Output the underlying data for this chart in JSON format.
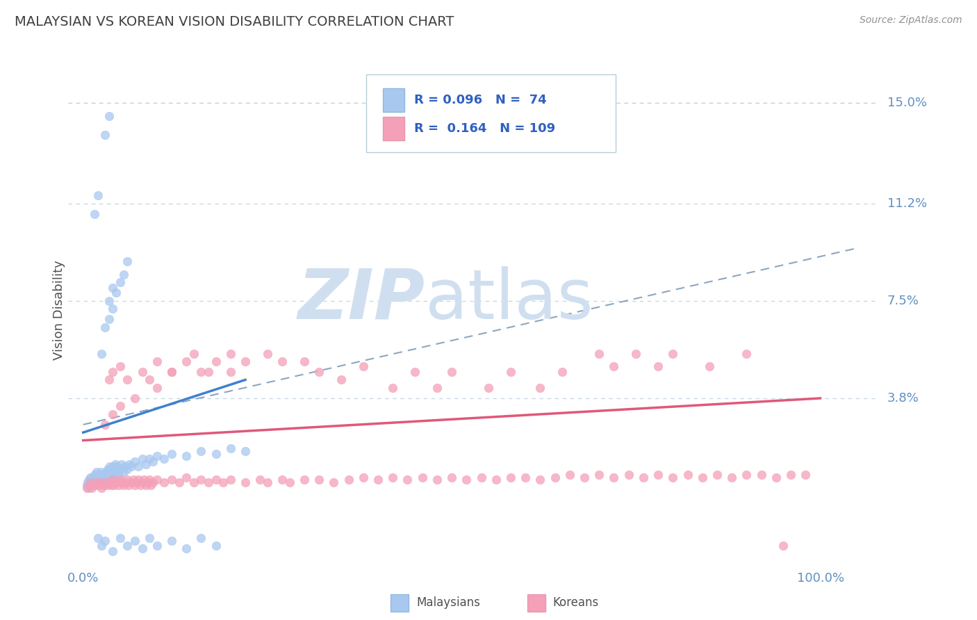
{
  "title": "MALAYSIAN VS KOREAN VISION DISABILITY CORRELATION CHART",
  "source": "Source: ZipAtlas.com",
  "ylabel": "Vision Disability",
  "ytick_labels": [
    "15.0%",
    "11.2%",
    "7.5%",
    "3.8%"
  ],
  "ytick_values": [
    0.15,
    0.112,
    0.075,
    0.038
  ],
  "ylim": [
    -0.025,
    0.168
  ],
  "xlim": [
    -0.02,
    1.08
  ],
  "malaysian_color": "#a8c8f0",
  "korean_color": "#f4a0b8",
  "malaysian_scatter": [
    [
      0.005,
      0.005
    ],
    [
      0.006,
      0.006
    ],
    [
      0.007,
      0.004
    ],
    [
      0.008,
      0.007
    ],
    [
      0.009,
      0.005
    ],
    [
      0.01,
      0.008
    ],
    [
      0.01,
      0.006
    ],
    [
      0.011,
      0.007
    ],
    [
      0.012,
      0.006
    ],
    [
      0.013,
      0.008
    ],
    [
      0.014,
      0.007
    ],
    [
      0.015,
      0.009
    ],
    [
      0.015,
      0.006
    ],
    [
      0.016,
      0.008
    ],
    [
      0.017,
      0.007
    ],
    [
      0.018,
      0.01
    ],
    [
      0.018,
      0.006
    ],
    [
      0.019,
      0.008
    ],
    [
      0.02,
      0.009
    ],
    [
      0.02,
      0.006
    ],
    [
      0.021,
      0.007
    ],
    [
      0.022,
      0.009
    ],
    [
      0.023,
      0.008
    ],
    [
      0.024,
      0.01
    ],
    [
      0.025,
      0.007
    ],
    [
      0.026,
      0.009
    ],
    [
      0.027,
      0.008
    ],
    [
      0.028,
      0.007
    ],
    [
      0.029,
      0.009
    ],
    [
      0.03,
      0.008
    ],
    [
      0.031,
      0.01
    ],
    [
      0.032,
      0.009
    ],
    [
      0.033,
      0.011
    ],
    [
      0.034,
      0.009
    ],
    [
      0.035,
      0.01
    ],
    [
      0.036,
      0.012
    ],
    [
      0.037,
      0.009
    ],
    [
      0.038,
      0.011
    ],
    [
      0.039,
      0.008
    ],
    [
      0.04,
      0.01
    ],
    [
      0.041,
      0.012
    ],
    [
      0.042,
      0.009
    ],
    [
      0.043,
      0.011
    ],
    [
      0.044,
      0.013
    ],
    [
      0.045,
      0.01
    ],
    [
      0.046,
      0.012
    ],
    [
      0.048,
      0.009
    ],
    [
      0.05,
      0.011
    ],
    [
      0.052,
      0.013
    ],
    [
      0.055,
      0.01
    ],
    [
      0.057,
      0.012
    ],
    [
      0.06,
      0.011
    ],
    [
      0.063,
      0.013
    ],
    [
      0.065,
      0.012
    ],
    [
      0.07,
      0.014
    ],
    [
      0.075,
      0.012
    ],
    [
      0.08,
      0.015
    ],
    [
      0.085,
      0.013
    ],
    [
      0.09,
      0.015
    ],
    [
      0.095,
      0.014
    ],
    [
      0.1,
      0.016
    ],
    [
      0.11,
      0.015
    ],
    [
      0.12,
      0.017
    ],
    [
      0.14,
      0.016
    ],
    [
      0.16,
      0.018
    ],
    [
      0.18,
      0.017
    ],
    [
      0.2,
      0.019
    ],
    [
      0.22,
      0.018
    ],
    [
      0.025,
      0.055
    ],
    [
      0.03,
      0.065
    ],
    [
      0.035,
      0.068
    ],
    [
      0.035,
      0.075
    ],
    [
      0.04,
      0.072
    ],
    [
      0.04,
      0.08
    ],
    [
      0.045,
      0.078
    ],
    [
      0.05,
      0.082
    ],
    [
      0.055,
      0.085
    ],
    [
      0.06,
      0.09
    ],
    [
      0.015,
      0.108
    ],
    [
      0.02,
      0.115
    ],
    [
      0.03,
      0.138
    ],
    [
      0.035,
      0.145
    ],
    [
      0.02,
      -0.015
    ],
    [
      0.025,
      -0.018
    ],
    [
      0.03,
      -0.016
    ],
    [
      0.04,
      -0.02
    ],
    [
      0.05,
      -0.015
    ],
    [
      0.06,
      -0.018
    ],
    [
      0.07,
      -0.016
    ],
    [
      0.08,
      -0.019
    ],
    [
      0.09,
      -0.015
    ],
    [
      0.1,
      -0.018
    ],
    [
      0.12,
      -0.016
    ],
    [
      0.14,
      -0.019
    ],
    [
      0.16,
      -0.015
    ],
    [
      0.18,
      -0.018
    ]
  ],
  "korean_scatter": [
    [
      0.005,
      0.004
    ],
    [
      0.008,
      0.005
    ],
    [
      0.01,
      0.006
    ],
    [
      0.012,
      0.004
    ],
    [
      0.015,
      0.005
    ],
    [
      0.018,
      0.006
    ],
    [
      0.02,
      0.005
    ],
    [
      0.022,
      0.006
    ],
    [
      0.025,
      0.004
    ],
    [
      0.028,
      0.005
    ],
    [
      0.03,
      0.006
    ],
    [
      0.032,
      0.005
    ],
    [
      0.035,
      0.006
    ],
    [
      0.038,
      0.005
    ],
    [
      0.04,
      0.007
    ],
    [
      0.042,
      0.005
    ],
    [
      0.045,
      0.006
    ],
    [
      0.048,
      0.005
    ],
    [
      0.05,
      0.007
    ],
    [
      0.052,
      0.006
    ],
    [
      0.055,
      0.005
    ],
    [
      0.058,
      0.006
    ],
    [
      0.06,
      0.007
    ],
    [
      0.062,
      0.005
    ],
    [
      0.065,
      0.006
    ],
    [
      0.068,
      0.007
    ],
    [
      0.07,
      0.005
    ],
    [
      0.072,
      0.006
    ],
    [
      0.075,
      0.007
    ],
    [
      0.078,
      0.005
    ],
    [
      0.08,
      0.006
    ],
    [
      0.082,
      0.007
    ],
    [
      0.085,
      0.005
    ],
    [
      0.088,
      0.006
    ],
    [
      0.09,
      0.007
    ],
    [
      0.092,
      0.005
    ],
    [
      0.095,
      0.006
    ],
    [
      0.1,
      0.007
    ],
    [
      0.11,
      0.006
    ],
    [
      0.12,
      0.007
    ],
    [
      0.13,
      0.006
    ],
    [
      0.14,
      0.008
    ],
    [
      0.15,
      0.006
    ],
    [
      0.16,
      0.007
    ],
    [
      0.17,
      0.006
    ],
    [
      0.18,
      0.007
    ],
    [
      0.19,
      0.006
    ],
    [
      0.2,
      0.007
    ],
    [
      0.22,
      0.006
    ],
    [
      0.24,
      0.007
    ],
    [
      0.25,
      0.006
    ],
    [
      0.27,
      0.007
    ],
    [
      0.28,
      0.006
    ],
    [
      0.3,
      0.007
    ],
    [
      0.32,
      0.007
    ],
    [
      0.34,
      0.006
    ],
    [
      0.36,
      0.007
    ],
    [
      0.38,
      0.008
    ],
    [
      0.4,
      0.007
    ],
    [
      0.42,
      0.008
    ],
    [
      0.44,
      0.007
    ],
    [
      0.46,
      0.008
    ],
    [
      0.48,
      0.007
    ],
    [
      0.5,
      0.008
    ],
    [
      0.52,
      0.007
    ],
    [
      0.54,
      0.008
    ],
    [
      0.56,
      0.007
    ],
    [
      0.58,
      0.008
    ],
    [
      0.6,
      0.008
    ],
    [
      0.62,
      0.007
    ],
    [
      0.64,
      0.008
    ],
    [
      0.66,
      0.009
    ],
    [
      0.68,
      0.008
    ],
    [
      0.7,
      0.009
    ],
    [
      0.72,
      0.008
    ],
    [
      0.74,
      0.009
    ],
    [
      0.76,
      0.008
    ],
    [
      0.78,
      0.009
    ],
    [
      0.8,
      0.008
    ],
    [
      0.82,
      0.009
    ],
    [
      0.84,
      0.008
    ],
    [
      0.86,
      0.009
    ],
    [
      0.88,
      0.008
    ],
    [
      0.9,
      0.009
    ],
    [
      0.92,
      0.009
    ],
    [
      0.94,
      0.008
    ],
    [
      0.96,
      0.009
    ],
    [
      0.98,
      0.009
    ],
    [
      0.35,
      0.045
    ],
    [
      0.38,
      0.05
    ],
    [
      0.42,
      0.042
    ],
    [
      0.45,
      0.048
    ],
    [
      0.48,
      0.042
    ],
    [
      0.5,
      0.048
    ],
    [
      0.55,
      0.042
    ],
    [
      0.58,
      0.048
    ],
    [
      0.62,
      0.042
    ],
    [
      0.65,
      0.048
    ],
    [
      0.3,
      0.052
    ],
    [
      0.32,
      0.048
    ],
    [
      0.25,
      0.055
    ],
    [
      0.27,
      0.052
    ],
    [
      0.2,
      0.055
    ],
    [
      0.22,
      0.052
    ],
    [
      0.15,
      0.055
    ],
    [
      0.17,
      0.048
    ],
    [
      0.12,
      0.048
    ],
    [
      0.1,
      0.042
    ],
    [
      0.07,
      0.038
    ],
    [
      0.05,
      0.035
    ],
    [
      0.04,
      0.032
    ],
    [
      0.03,
      0.028
    ],
    [
      0.035,
      0.045
    ],
    [
      0.04,
      0.048
    ],
    [
      0.05,
      0.05
    ],
    [
      0.06,
      0.045
    ],
    [
      0.08,
      0.048
    ],
    [
      0.09,
      0.045
    ],
    [
      0.1,
      0.052
    ],
    [
      0.12,
      0.048
    ],
    [
      0.14,
      0.052
    ],
    [
      0.16,
      0.048
    ],
    [
      0.18,
      0.052
    ],
    [
      0.2,
      0.048
    ],
    [
      0.7,
      0.055
    ],
    [
      0.72,
      0.05
    ],
    [
      0.75,
      0.055
    ],
    [
      0.78,
      0.05
    ],
    [
      0.8,
      0.055
    ],
    [
      0.85,
      0.05
    ],
    [
      0.9,
      0.055
    ],
    [
      0.95,
      -0.018
    ]
  ],
  "background_color": "#ffffff",
  "grid_color": "#c8d8e8",
  "axis_color": "#6090c0",
  "watermark_text": "ZIPatlas",
  "watermark_color": "#d0dff0",
  "legend_color": "#3060c0",
  "mal_line": [
    0.0,
    0.025,
    0.22,
    0.045
  ],
  "kor_line": [
    0.0,
    0.022,
    1.0,
    0.038
  ],
  "dash_line": [
    0.0,
    0.028,
    1.05,
    0.095
  ]
}
